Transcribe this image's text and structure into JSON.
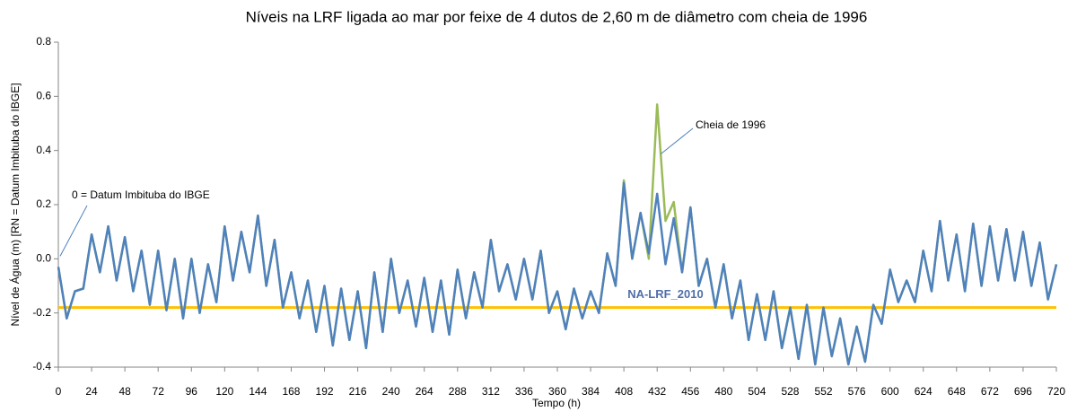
{
  "chart_data": {
    "type": "line",
    "title": "Níveis na LRF ligada ao mar por feixe de 4 dutos de 2,60 m de diâmetro com cheia de 1996",
    "x_label": "Tempo  (h)",
    "y_label": "Nível de Água (m) [RN = Datum Imbituba do IBGE]",
    "xlim": [
      0,
      720
    ],
    "ylim": [
      -0.4,
      0.8
    ],
    "xticks": [
      0,
      24,
      48,
      72,
      96,
      120,
      144,
      168,
      192,
      216,
      240,
      264,
      288,
      312,
      336,
      360,
      384,
      408,
      432,
      456,
      480,
      504,
      528,
      552,
      576,
      600,
      624,
      648,
      672,
      696,
      720
    ],
    "yticks": [
      -0.4,
      -0.2,
      {
        "value": 0,
        "label": "0.0"
      },
      0.2,
      0.4,
      0.6,
      0.8
    ],
    "grid": false,
    "x": [
      0,
      6,
      12,
      18,
      24,
      30,
      36,
      42,
      48,
      54,
      60,
      66,
      72,
      78,
      84,
      90,
      96,
      102,
      108,
      114,
      120,
      126,
      132,
      138,
      144,
      150,
      156,
      162,
      168,
      174,
      180,
      186,
      192,
      198,
      204,
      210,
      216,
      222,
      228,
      234,
      240,
      246,
      252,
      258,
      264,
      270,
      276,
      282,
      288,
      294,
      300,
      306,
      312,
      318,
      324,
      330,
      336,
      342,
      348,
      354,
      360,
      366,
      372,
      378,
      384,
      390,
      396,
      402,
      408,
      414,
      420,
      426,
      432,
      438,
      444,
      450,
      456,
      462,
      468,
      474,
      480,
      486,
      492,
      498,
      504,
      510,
      516,
      522,
      528,
      534,
      540,
      546,
      552,
      558,
      564,
      570,
      576,
      582,
      588,
      594,
      600,
      606,
      612,
      618,
      624,
      630,
      636,
      642,
      648,
      654,
      660,
      666,
      672,
      678,
      684,
      690,
      696,
      702,
      708,
      714,
      720
    ],
    "series": [
      {
        "color": "#9bbb59",
        "values": [
          -0.03,
          -0.22,
          -0.12,
          -0.11,
          0.09,
          -0.05,
          0.12,
          -0.08,
          0.08,
          -0.12,
          0.03,
          -0.17,
          0.03,
          -0.19,
          0.0,
          -0.22,
          0.0,
          -0.2,
          -0.02,
          -0.16,
          0.12,
          -0.08,
          0.1,
          -0.05,
          0.16,
          -0.1,
          0.07,
          -0.18,
          -0.05,
          -0.22,
          -0.08,
          -0.27,
          -0.1,
          -0.32,
          -0.11,
          -0.3,
          -0.12,
          -0.33,
          -0.05,
          -0.27,
          0.0,
          -0.2,
          -0.08,
          -0.25,
          -0.07,
          -0.27,
          -0.08,
          -0.28,
          -0.04,
          -0.22,
          -0.05,
          -0.18,
          0.07,
          -0.12,
          -0.02,
          -0.15,
          0.0,
          -0.15,
          0.03,
          -0.2,
          -0.12,
          -0.26,
          -0.11,
          -0.22,
          -0.12,
          -0.2,
          0.02,
          -0.1,
          0.29,
          0.0,
          0.17,
          0.0,
          0.57,
          0.14,
          0.21,
          -0.05,
          0.19,
          -0.1,
          0.0,
          -0.18,
          -0.02,
          -0.22,
          -0.08,
          -0.3,
          -0.13,
          -0.3,
          -0.12,
          -0.33,
          -0.18,
          -0.37,
          -0.17,
          -0.39,
          -0.18,
          -0.36,
          -0.22,
          -0.39,
          -0.25,
          -0.38,
          -0.17,
          -0.24,
          -0.04,
          -0.16,
          -0.08,
          -0.16,
          0.03,
          -0.12,
          0.14,
          -0.08,
          0.09,
          -0.12,
          0.13,
          -0.1,
          0.12,
          -0.08,
          0.11,
          -0.08,
          0.1,
          -0.1,
          0.06,
          -0.15,
          -0.02
        ]
      },
      {
        "color": "#4f81bd",
        "values": [
          -0.03,
          -0.22,
          -0.12,
          -0.11,
          0.09,
          -0.05,
          0.12,
          -0.08,
          0.08,
          -0.12,
          0.03,
          -0.17,
          0.03,
          -0.19,
          0.0,
          -0.22,
          0.0,
          -0.2,
          -0.02,
          -0.16,
          0.12,
          -0.08,
          0.1,
          -0.05,
          0.16,
          -0.1,
          0.07,
          -0.18,
          -0.05,
          -0.22,
          -0.08,
          -0.27,
          -0.1,
          -0.32,
          -0.11,
          -0.3,
          -0.12,
          -0.33,
          -0.05,
          -0.27,
          0.0,
          -0.2,
          -0.08,
          -0.25,
          -0.07,
          -0.27,
          -0.08,
          -0.28,
          -0.04,
          -0.22,
          -0.05,
          -0.18,
          0.07,
          -0.12,
          -0.02,
          -0.15,
          0.0,
          -0.15,
          0.03,
          -0.2,
          -0.12,
          -0.26,
          -0.11,
          -0.22,
          -0.12,
          -0.2,
          0.02,
          -0.1,
          0.28,
          0.0,
          0.17,
          0.02,
          0.24,
          -0.02,
          0.15,
          -0.05,
          0.19,
          -0.1,
          0.0,
          -0.18,
          -0.02,
          -0.22,
          -0.08,
          -0.3,
          -0.13,
          -0.3,
          -0.12,
          -0.33,
          -0.18,
          -0.37,
          -0.17,
          -0.39,
          -0.18,
          -0.36,
          -0.22,
          -0.39,
          -0.25,
          -0.38,
          -0.17,
          -0.24,
          -0.04,
          -0.16,
          -0.08,
          -0.16,
          0.03,
          -0.12,
          0.14,
          -0.08,
          0.09,
          -0.12,
          0.13,
          -0.1,
          0.12,
          -0.08,
          0.11,
          -0.08,
          0.1,
          -0.1,
          0.06,
          -0.15,
          -0.02
        ]
      }
    ],
    "reference_line": {
      "label": "NA-LRF_2010",
      "value": -0.18,
      "color": "#ffc000"
    },
    "annotations": [
      {
        "text": "Cheia de 1996",
        "x": 432,
        "y": 0.42
      },
      {
        "text": "0 = Datum Imbituba do IBGE",
        "x": 0,
        "y": 0
      }
    ]
  }
}
